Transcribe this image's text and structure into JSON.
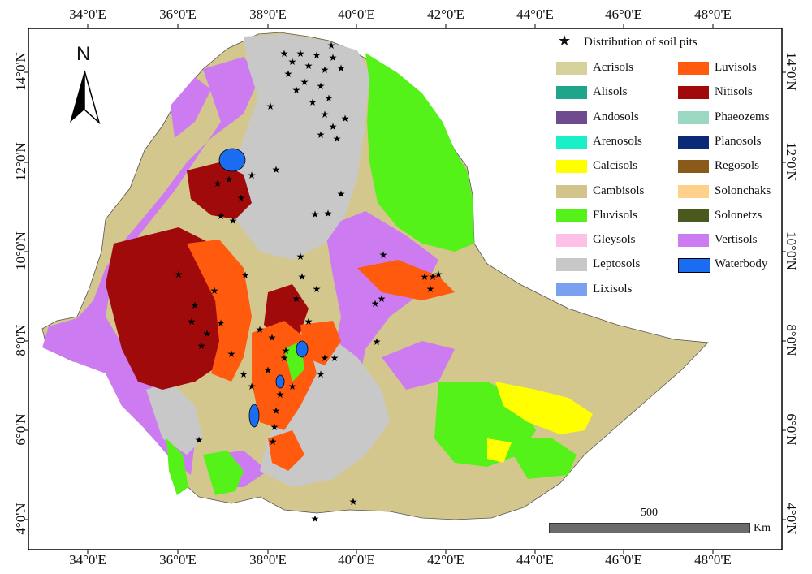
{
  "map": {
    "x_ticks": [
      "34°0'E",
      "36°0'E",
      "38°0'E",
      "40°0'E",
      "42°0'E",
      "44°0'E",
      "46°0'E",
      "48°0'E"
    ],
    "y_ticks": [
      "14°0'N",
      "12°0'N",
      "10°0'N",
      "8°0'N",
      "6°0'N",
      "4°0'N"
    ],
    "north_label": "N",
    "scale": {
      "value": "500",
      "unit": "Km"
    },
    "legend": {
      "title": "Distribution of soil pits",
      "items": [
        {
          "label": "Acrisols",
          "color": "#d6d09a"
        },
        {
          "label": "Alisols",
          "color": "#1fa58a"
        },
        {
          "label": "Andosols",
          "color": "#6e4a8e"
        },
        {
          "label": "Arenosols",
          "color": "#19f0c8"
        },
        {
          "label": "Calcisols",
          "color": "#ffff00"
        },
        {
          "label": "Cambisols",
          "color": "#d2c48a"
        },
        {
          "label": "Fluvisols",
          "color": "#55f21a"
        },
        {
          "label": "Gleysols",
          "color": "#ffc0e8"
        },
        {
          "label": "Leptosols",
          "color": "#c8c8c8"
        },
        {
          "label": "Lixisols",
          "color": "#7aa0f0"
        },
        {
          "label": "Luvisols",
          "color": "#ff5a0e"
        },
        {
          "label": "Nitisols",
          "color": "#a00a0a"
        },
        {
          "label": "Phaeozems",
          "color": "#9ad8c2"
        },
        {
          "label": "Planosols",
          "color": "#0a2a78"
        },
        {
          "label": "Regosols",
          "color": "#8a5a1a"
        },
        {
          "label": "Solonchaks",
          "color": "#ffd08a"
        },
        {
          "label": "Solonetzs",
          "color": "#4a5a1e"
        },
        {
          "label": "Vertisols",
          "color": "#cc7cf0"
        },
        {
          "label": "Waterbody",
          "color": "#1a6cf0"
        }
      ]
    }
  }
}
